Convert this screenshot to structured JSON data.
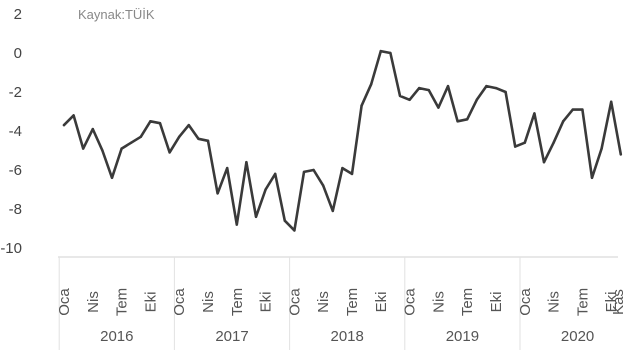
{
  "chart_data": {
    "type": "line",
    "source_note": "Kaynak:TÜİK",
    "ylim": [
      -10,
      2
    ],
    "yticks": [
      2,
      0,
      -2,
      -4,
      -6,
      -8,
      -10
    ],
    "grid": false,
    "legend": "none",
    "line_color": "#3a3a3a",
    "month_ticks": [
      "Oca",
      "Nis",
      "Tem",
      "Eki"
    ],
    "years": [
      "2016",
      "2017",
      "2018",
      "2019",
      "2020"
    ],
    "last_tick": "Kas",
    "series": [
      {
        "values": [
          -3.7,
          -3.2,
          -4.9,
          -3.9,
          -5.0,
          -6.4,
          -4.9,
          -4.6,
          -4.3,
          -3.5,
          -3.6,
          -5.1,
          -4.3,
          -3.7,
          -4.4,
          -4.5,
          -7.2,
          -5.9,
          -8.8,
          -5.6,
          -8.4,
          -7.0,
          -6.2,
          -8.6,
          -9.1,
          -6.1,
          -6.0,
          -6.8,
          -8.1,
          -5.9,
          -6.2,
          -2.7,
          -1.6,
          0.1,
          0.0,
          -2.2,
          -2.4,
          -1.8,
          -1.9,
          -2.8,
          -1.7,
          -3.5,
          -3.4,
          -2.4,
          -1.7,
          -1.8,
          -2.0,
          -4.8,
          -4.6,
          -3.1,
          -5.6,
          -4.6,
          -3.5,
          -2.9,
          -2.9,
          -6.4,
          -4.9,
          -2.5,
          -5.2
        ]
      }
    ]
  }
}
